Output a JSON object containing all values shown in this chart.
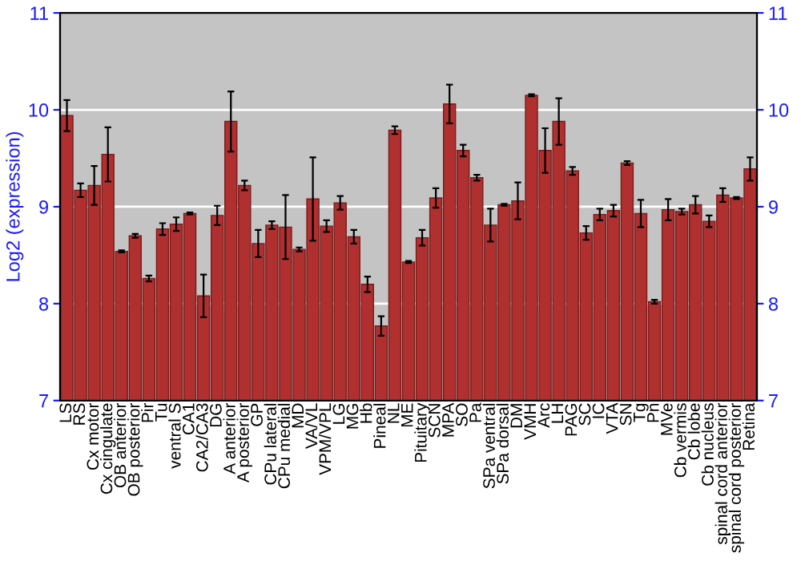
{
  "chart_data": {
    "type": "bar",
    "ylabel": "Log2 (expression)",
    "categories": [
      "LS",
      "RS",
      "Cx motor",
      "Cx cingulate",
      "OB anterior",
      "OB posterior",
      "Pir",
      "Tu",
      "ventral S",
      "CA1",
      "CA2/CA3",
      "DG",
      "A anterior",
      "A posterior",
      "GP",
      "CPu lateral",
      "CPu medial",
      "MD",
      "VA/VL",
      "VPM/VPL",
      "LG",
      "MG",
      "Hb",
      "Pineal",
      "NL",
      "ME",
      "Pituitary",
      "SCN",
      "MPA",
      "SO",
      "Pa",
      "SPa ventral",
      "SPa dorsal",
      "DM",
      "VMH",
      "Arc",
      "LH",
      "PAG",
      "SC",
      "IC",
      "VTA",
      "SN",
      "Tg",
      "Pn",
      "MVe",
      "Cb vermis",
      "Cb lobe",
      "Cb nucleus",
      "spinal cord anterior",
      "spinal cord posterior",
      "Retina"
    ],
    "values": [
      9.94,
      9.17,
      9.22,
      9.54,
      8.54,
      8.7,
      8.26,
      8.77,
      8.82,
      8.93,
      8.08,
      8.91,
      9.88,
      9.22,
      8.62,
      8.81,
      8.79,
      8.56,
      9.08,
      8.8,
      9.04,
      8.69,
      8.2,
      7.77,
      9.79,
      8.43,
      8.68,
      9.09,
      10.06,
      9.58,
      9.3,
      8.81,
      9.02,
      9.06,
      10.15,
      9.58,
      9.88,
      9.37,
      8.73,
      8.92,
      8.96,
      9.45,
      8.93,
      8.02,
      8.97,
      8.95,
      9.02,
      8.85,
      9.12,
      9.09,
      9.39
    ],
    "errors": [
      0.16,
      0.07,
      0.2,
      0.28,
      0.01,
      0.02,
      0.03,
      0.06,
      0.07,
      0.01,
      0.22,
      0.1,
      0.31,
      0.05,
      0.14,
      0.04,
      0.33,
      0.02,
      0.43,
      0.06,
      0.07,
      0.07,
      0.08,
      0.1,
      0.04,
      0.01,
      0.08,
      0.1,
      0.2,
      0.06,
      0.03,
      0.17,
      0.01,
      0.19,
      0.01,
      0.23,
      0.24,
      0.04,
      0.07,
      0.06,
      0.06,
      0.02,
      0.14,
      0.02,
      0.11,
      0.03,
      0.09,
      0.06,
      0.07,
      0.01,
      0.12
    ],
    "color": "#b03030",
    "ylim": [
      7,
      11
    ],
    "yticks": [
      7,
      8,
      9,
      10,
      11
    ],
    "y2lim": [
      7,
      11
    ],
    "y2ticks": [
      7,
      8,
      9,
      10,
      11
    ],
    "grid": "y"
  }
}
